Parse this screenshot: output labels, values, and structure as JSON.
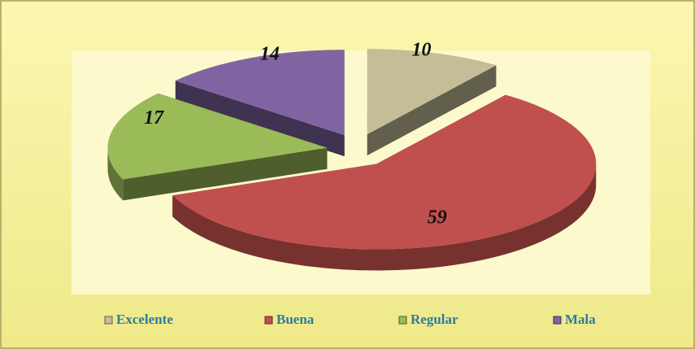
{
  "chart_data": {
    "type": "pie3d",
    "categories": [
      "Excelente",
      "Buena",
      "Regular",
      "Mala"
    ],
    "values": [
      10,
      59,
      17,
      14
    ],
    "colors": [
      "#c4bd97",
      "#c0504d",
      "#9bbb59",
      "#8064a2"
    ],
    "legend": "bottom"
  }
}
